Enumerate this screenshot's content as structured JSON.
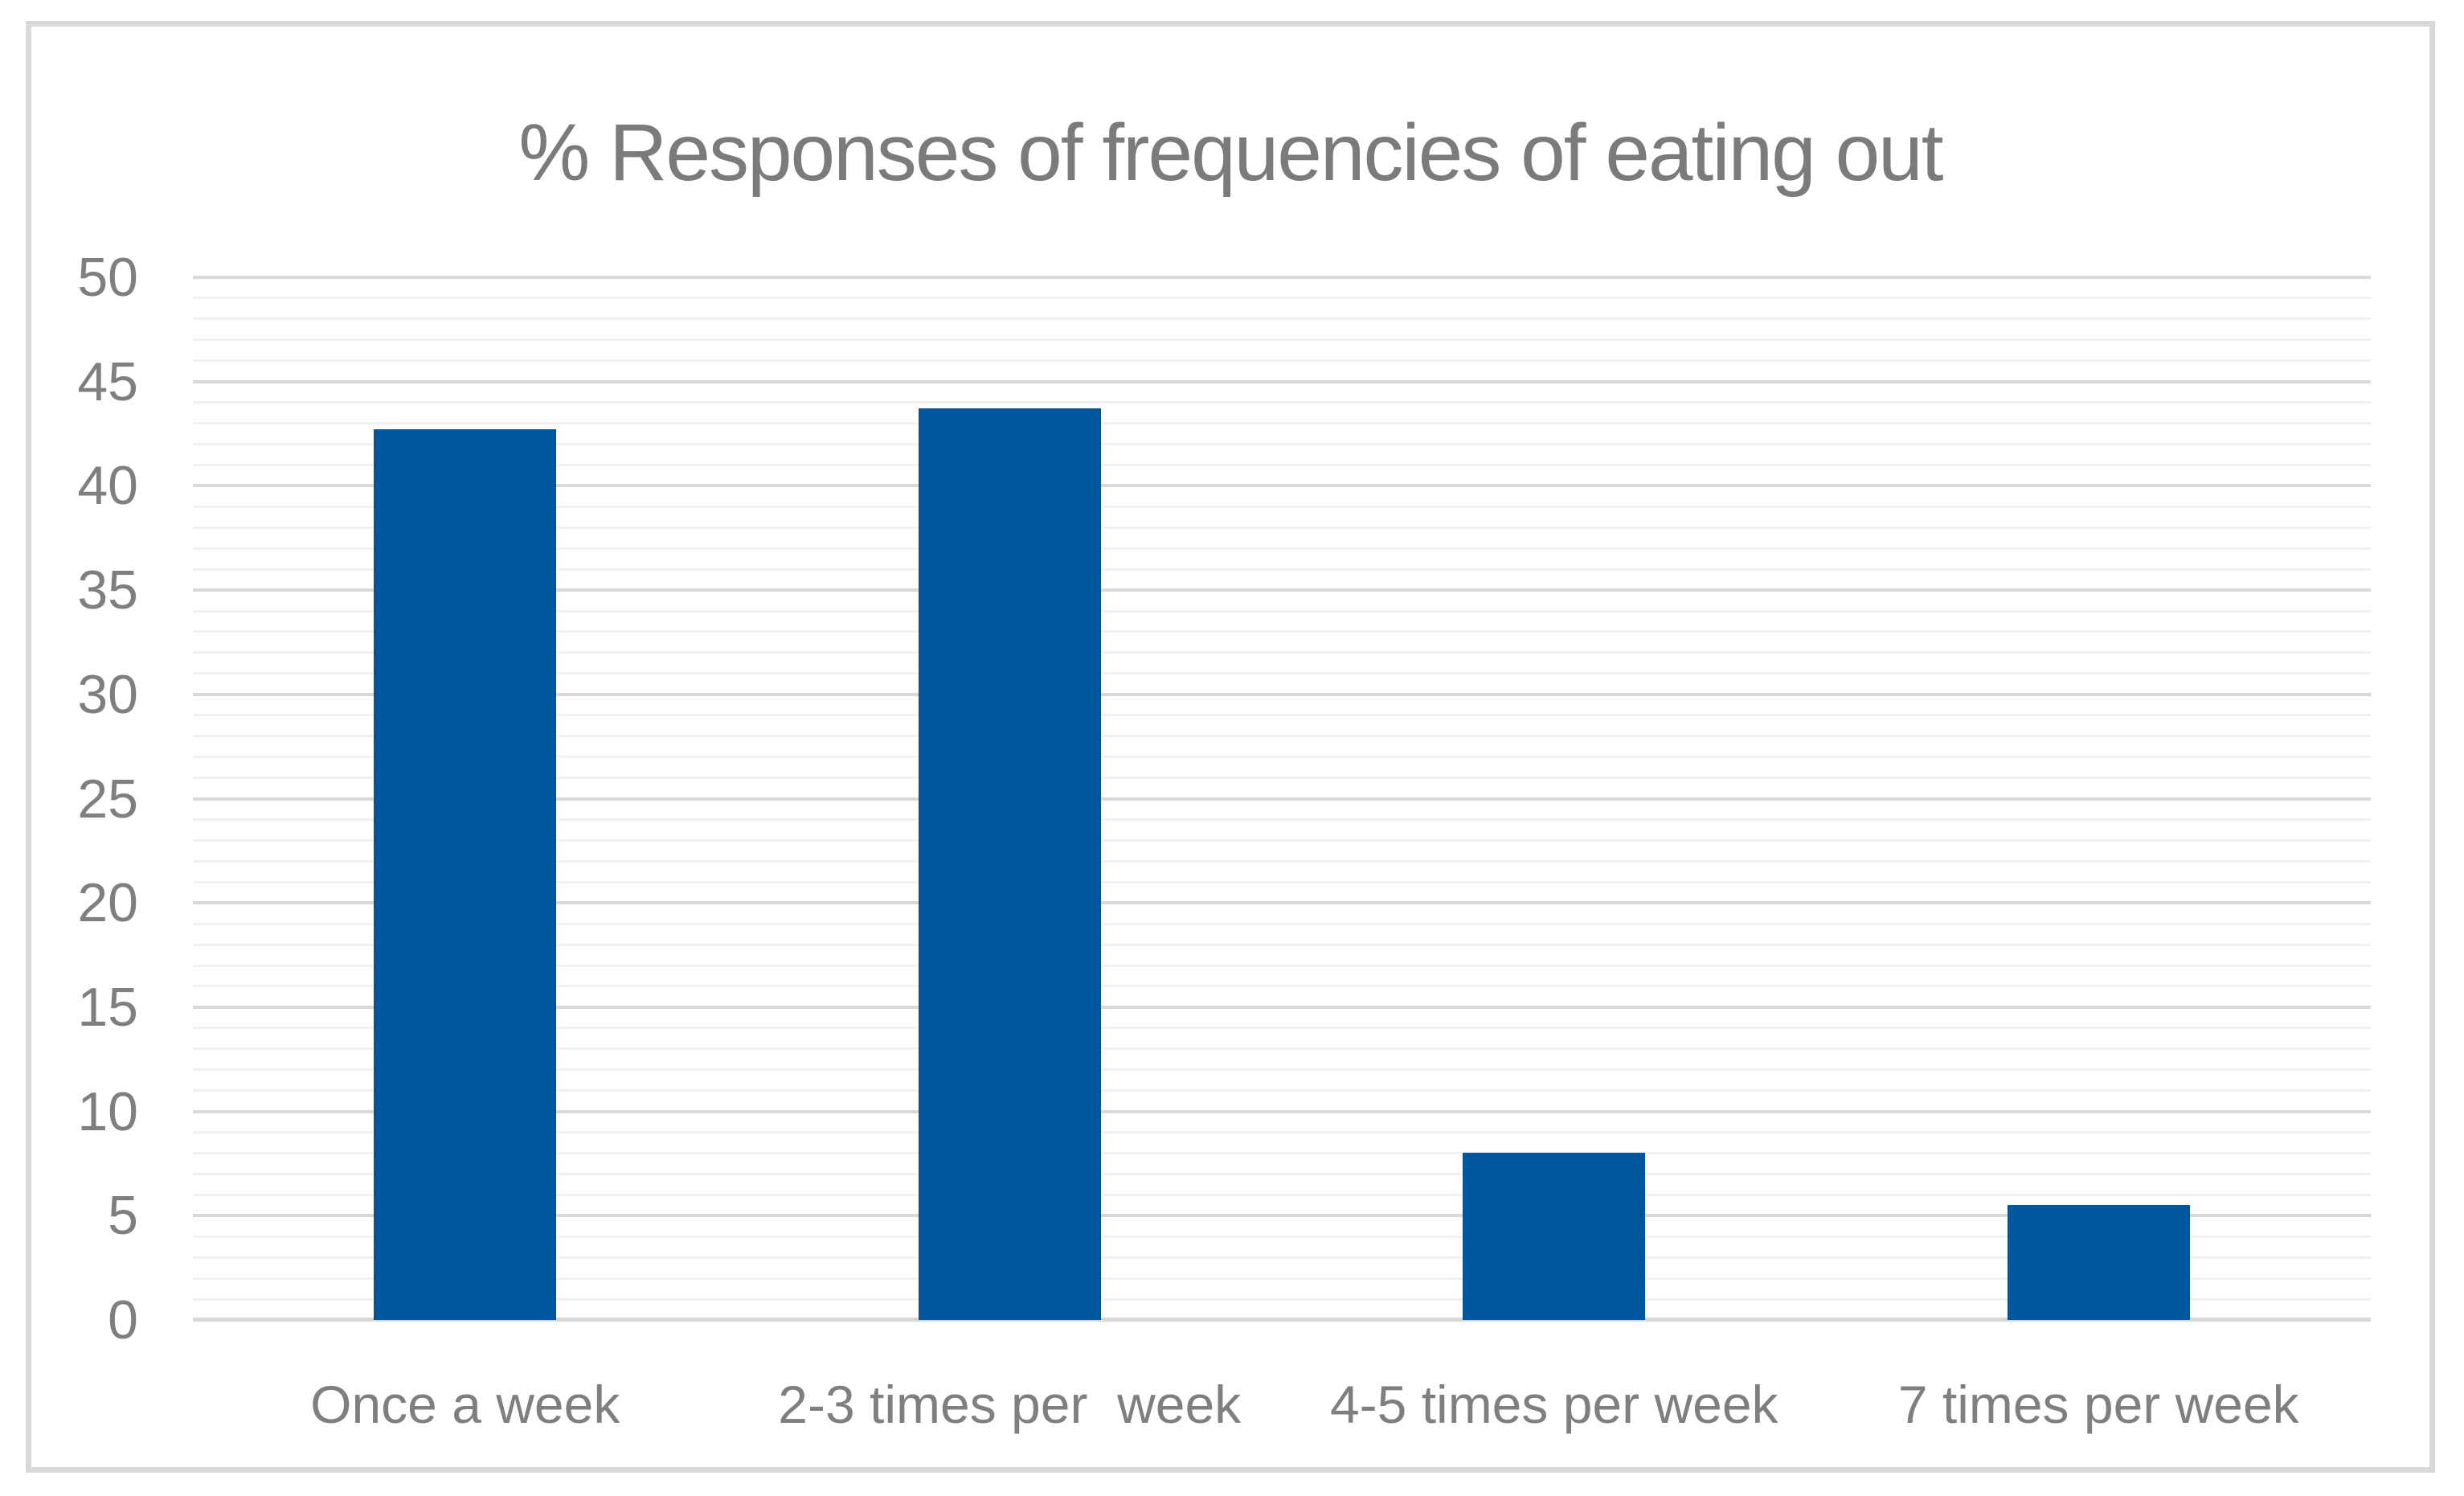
{
  "chart_data": {
    "type": "bar",
    "title": "% Responses of frequencies of eating out",
    "categories": [
      "Once a week",
      "2-3 times per  week",
      "4-5 times per week",
      "7 times per week"
    ],
    "values": [
      42.7,
      43.7,
      8,
      5.5
    ],
    "xlabel": "",
    "ylabel": "",
    "ylim": [
      0,
      50
    ],
    "ytick_step": 5,
    "yminor_step": 1,
    "ytick_labels": [
      "0",
      "5",
      "10",
      "15",
      "20",
      "25",
      "30",
      "35",
      "40",
      "45",
      "50"
    ],
    "grid": "horizontal, major and minor, on",
    "legend": "none",
    "colors": {
      "bar": "#00569D",
      "text": "#7f7f7f",
      "title_text": "#7b7b7b",
      "major_gridline": "#d9d9d9",
      "minor_gridline": "#f2f2f2",
      "axis_line": "#d7d7d7",
      "figure_border": "#d9d9d9",
      "background": "#ffffff"
    }
  }
}
